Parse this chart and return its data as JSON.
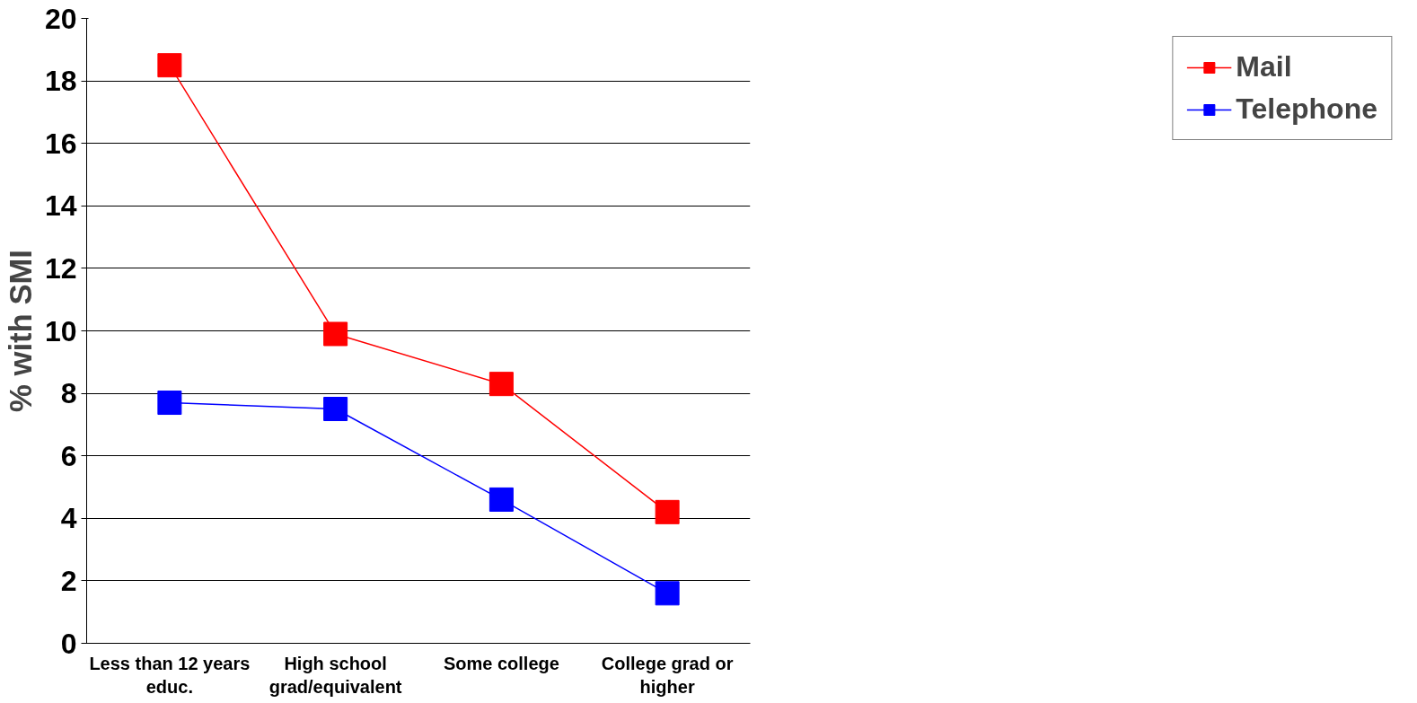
{
  "chart_data": {
    "type": "line",
    "ylabel": "% with SMI",
    "categories": [
      "Less than 12 years educ.",
      "High school grad/equivalent",
      "Some college",
      "College grad or higher"
    ],
    "series": [
      {
        "name": "Mail",
        "color": "#ff0000",
        "values": [
          18.5,
          9.9,
          8.3,
          4.2
        ]
      },
      {
        "name": "Telephone",
        "color": "#0000ff",
        "values": [
          7.7,
          7.5,
          4.6,
          1.6
        ]
      }
    ],
    "ylim": [
      0,
      20
    ],
    "yticks": [
      0,
      2,
      4,
      6,
      8,
      10,
      12,
      14,
      16,
      18,
      20
    ],
    "grid": "y",
    "legend": "right",
    "marker": "square",
    "line_style": "solid"
  }
}
